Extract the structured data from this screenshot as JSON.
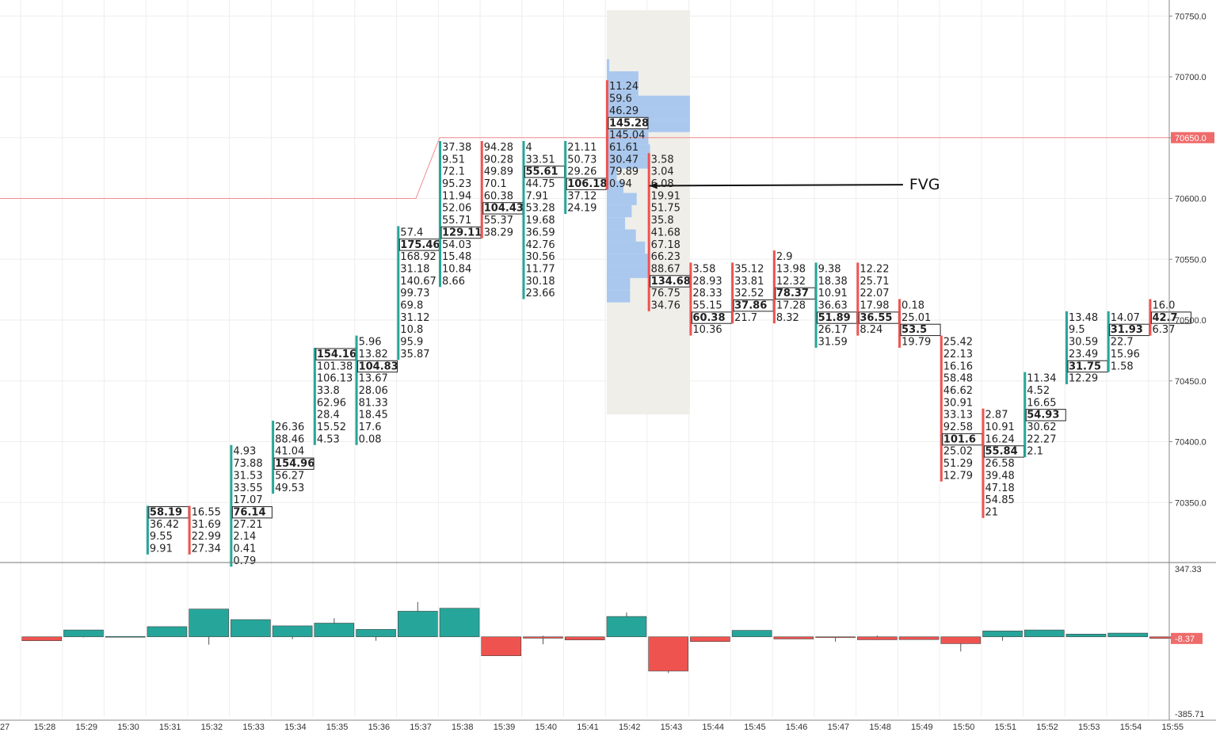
{
  "chart_data": {
    "type": "footprint",
    "price_axis": {
      "ylim": [
        70300,
        70770
      ],
      "ticks": [
        "70750.0",
        "70700.0",
        "70650.0",
        "70600.0",
        "70550.0",
        "70500.0",
        "70450.0",
        "70400.0",
        "70350.0"
      ],
      "current_price_label": "70650.0",
      "current_price": 70650,
      "prior_level": 70600,
      "level_color": "#f28b8b"
    },
    "time_axis": {
      "labels": [
        "27",
        "15:28",
        "15:29",
        "15:30",
        "15:31",
        "15:32",
        "15:33",
        "15:34",
        "15:35",
        "15:36",
        "15:37",
        "15:38",
        "15:39",
        "15:40",
        "15:41",
        "15:42",
        "15:43",
        "15:44",
        "15:45",
        "15:46",
        "15:47",
        "15:48",
        "15:49",
        "15:50",
        "15:51",
        "15:52",
        "15:53",
        "15:54",
        "15:55"
      ]
    },
    "footprint_columns": [
      {
        "time": "15:31",
        "direction": "up",
        "top_price": 70344,
        "values": [
          "58.19",
          "36.42",
          "9.55",
          "9.91"
        ],
        "poc": 0
      },
      {
        "time": "15:32",
        "direction": "down",
        "top_price": 70344,
        "values": [
          "16.55",
          "31.69",
          "22.99",
          "27.34"
        ],
        "poc": -1
      },
      {
        "time": "15:33",
        "direction": "up",
        "top_price": 70394,
        "values": [
          "4.93",
          "73.88",
          "31.53",
          "33.55",
          "17.07",
          "76.14",
          "27.21",
          "2.14",
          "0.41",
          "0.79"
        ],
        "poc": 5
      },
      {
        "time": "15:34",
        "direction": "up",
        "top_price": 70414,
        "values": [
          "26.36",
          "88.46",
          "41.04",
          "154.96",
          "56.27",
          "49.53"
        ],
        "poc": 3
      },
      {
        "time": "15:35",
        "direction": "up",
        "top_price": 70474,
        "values": [
          "154.16",
          "101.38",
          "106.13",
          "33.8",
          "62.96",
          "28.4",
          "15.52",
          "4.53"
        ],
        "poc": 0
      },
      {
        "time": "15:36",
        "direction": "up",
        "top_price": 70484,
        "values": [
          "5.96",
          "13.82",
          "104.83",
          "13.67",
          "28.06",
          "81.33",
          "18.45",
          "17.6",
          "0.08"
        ],
        "poc": 2
      },
      {
        "time": "15:37",
        "direction": "up",
        "top_price": 70574,
        "values": [
          "57.4",
          "175.46",
          "168.92",
          "31.18",
          "140.67",
          "99.73",
          "69.8",
          "31.12",
          "10.8",
          "95.9",
          "35.87"
        ],
        "poc": 1
      },
      {
        "time": "15:38",
        "direction": "up",
        "top_price": 70644,
        "values": [
          "37.38",
          "9.51",
          "72.1",
          "95.23",
          "11.94",
          "52.06",
          "55.71",
          "129.11",
          "54.03",
          "15.48",
          "10.84",
          "8.66"
        ],
        "poc": 7
      },
      {
        "time": "15:39",
        "direction": "down",
        "top_price": 70644,
        "values": [
          "94.28",
          "90.28",
          "49.89",
          "70.1",
          "60.38",
          "104.43",
          "55.37",
          "38.29"
        ],
        "poc": 5
      },
      {
        "time": "15:40",
        "direction": "up",
        "top_price": 70644,
        "values": [
          "4",
          "33.51",
          "55.61",
          "44.75",
          "7.91",
          "53.28",
          "19.68",
          "36.59",
          "42.76",
          "30.56",
          "11.77",
          "30.18",
          "23.66"
        ],
        "poc": 2
      },
      {
        "time": "15:41",
        "direction": "up",
        "top_price": 70644,
        "values": [
          "21.11",
          "50.73",
          "29.26",
          "106.18",
          "37.12",
          "24.19"
        ],
        "poc": 3
      },
      {
        "time": "15:42",
        "direction": "down",
        "top_price": 70694,
        "values": [
          "11.24",
          "59.6",
          "46.29",
          "145.28",
          "145.04",
          "61.61",
          "30.47",
          "79.89",
          "0.94"
        ],
        "poc": 3
      },
      {
        "time": "15:43",
        "direction": "down",
        "top_price": 70634,
        "values": [
          "3.58",
          "3.04",
          "6.08",
          "19.91",
          "51.75",
          "35.8",
          "41.68",
          "67.18",
          "66.23",
          "88.67",
          "134.68",
          "76.75",
          "34.76"
        ],
        "poc": 10
      },
      {
        "time": "15:44",
        "direction": "down",
        "top_price": 70544,
        "values": [
          "3.58",
          "28.93",
          "28.33",
          "55.15",
          "60.38",
          "10.36"
        ],
        "poc": 4
      },
      {
        "time": "15:45",
        "direction": "down",
        "top_price": 70544,
        "values": [
          "35.12",
          "33.81",
          "32.52",
          "37.86",
          "21.7"
        ],
        "poc": 3
      },
      {
        "time": "15:46",
        "direction": "down",
        "top_price": 70554,
        "values": [
          "2.9",
          "13.98",
          "12.32",
          "78.37",
          "17.28",
          "8.32"
        ],
        "poc": 3
      },
      {
        "time": "15:47",
        "direction": "up",
        "top_price": 70544,
        "values": [
          "9.38",
          "18.38",
          "10.91",
          "36.63",
          "51.89",
          "26.17",
          "31.59"
        ],
        "poc": 4
      },
      {
        "time": "15:48",
        "direction": "down",
        "top_price": 70544,
        "values": [
          "12.22",
          "25.71",
          "22.07",
          "17.98",
          "36.55",
          "8.24"
        ],
        "poc": 4
      },
      {
        "time": "15:49",
        "direction": "down",
        "top_price": 70514,
        "values": [
          "0.18",
          "25.01",
          "53.5",
          "19.79"
        ],
        "poc": 2
      },
      {
        "time": "15:50",
        "direction": "down",
        "top_price": 70484,
        "values": [
          "25.42",
          "22.13",
          "16.16",
          "58.48",
          "46.62",
          "30.91",
          "33.13",
          "92.58",
          "101.6",
          "25.02",
          "51.29",
          "12.79"
        ],
        "poc": 8
      },
      {
        "time": "15:51",
        "direction": "down",
        "top_price": 70424,
        "values": [
          "2.87",
          "10.91",
          "16.24",
          "55.84",
          "26.58",
          "39.48",
          "47.18",
          "54.85",
          "21"
        ],
        "poc": 3
      },
      {
        "time": "15:52",
        "direction": "up",
        "top_price": 70454,
        "values": [
          "11.34",
          "4.52",
          "16.65",
          "54.93",
          "30.62",
          "22.27",
          "2.1"
        ],
        "poc": 3
      },
      {
        "time": "15:53",
        "direction": "up",
        "top_price": 70504,
        "values": [
          "13.48",
          "9.5",
          "30.59",
          "23.49",
          "31.75",
          "12.29"
        ],
        "poc": 4
      },
      {
        "time": "15:54",
        "direction": "up",
        "top_price": 70504,
        "values": [
          "14.07",
          "31.93",
          "22.7",
          "15.96",
          "1.58"
        ],
        "poc": 1
      },
      {
        "time": "15:55",
        "direction": "down",
        "top_price": 70514,
        "values": [
          "16.0",
          "42.7",
          "6.37"
        ],
        "poc": 1
      }
    ],
    "delta_pane": {
      "ylim": [
        -385.71,
        347.33
      ],
      "tick_top": "347.33",
      "tick_bottom": "-385.71",
      "current_label": "-8.37",
      "bars": [
        {
          "time": "15:27",
          "value": 1,
          "wick_high": 1,
          "wick_low": -1
        },
        {
          "time": "15:28",
          "value": -20,
          "wick_high": 0,
          "wick_low": -20
        },
        {
          "time": "15:29",
          "value": 35,
          "wick_high": 35,
          "wick_low": -3
        },
        {
          "time": "15:30",
          "value": 2,
          "wick_high": 3,
          "wick_low": -2
        },
        {
          "time": "15:31",
          "value": 52,
          "wick_high": 52,
          "wick_low": 0
        },
        {
          "time": "15:32",
          "value": 142,
          "wick_high": 142,
          "wick_low": -40
        },
        {
          "time": "15:33",
          "value": 88,
          "wick_high": 88,
          "wick_low": 0
        },
        {
          "time": "15:34",
          "value": 56,
          "wick_high": 56,
          "wick_low": -12
        },
        {
          "time": "15:35",
          "value": 70,
          "wick_high": 95,
          "wick_low": 0
        },
        {
          "time": "15:36",
          "value": 38,
          "wick_high": 38,
          "wick_low": -20
        },
        {
          "time": "15:37",
          "value": 131,
          "wick_high": 178,
          "wick_low": 0
        },
        {
          "time": "15:38",
          "value": 146,
          "wick_high": 146,
          "wick_low": 0
        },
        {
          "time": "15:39",
          "value": -97,
          "wick_high": 0,
          "wick_low": -97
        },
        {
          "time": "15:40",
          "value": -7,
          "wick_high": 5,
          "wick_low": -38
        },
        {
          "time": "15:41",
          "value": -16,
          "wick_high": 0,
          "wick_low": -16
        },
        {
          "time": "15:42",
          "value": 104,
          "wick_high": 124,
          "wick_low": 0
        },
        {
          "time": "15:43",
          "value": -175,
          "wick_high": 0,
          "wick_low": -185
        },
        {
          "time": "15:44",
          "value": -24,
          "wick_high": 0,
          "wick_low": -24
        },
        {
          "time": "15:45",
          "value": 33,
          "wick_high": 33,
          "wick_low": 0
        },
        {
          "time": "15:46",
          "value": -11,
          "wick_high": 0,
          "wick_low": -11
        },
        {
          "time": "15:47",
          "value": -3,
          "wick_high": 0,
          "wick_low": -25
        },
        {
          "time": "15:48",
          "value": -15,
          "wick_high": 6,
          "wick_low": -15
        },
        {
          "time": "15:49",
          "value": -14,
          "wick_high": 0,
          "wick_low": -14
        },
        {
          "time": "15:50",
          "value": -35,
          "wick_high": 0,
          "wick_low": -75
        },
        {
          "time": "15:51",
          "value": 30,
          "wick_high": 30,
          "wick_low": -20
        },
        {
          "time": "15:52",
          "value": 35,
          "wick_high": 35,
          "wick_low": 0
        },
        {
          "time": "15:53",
          "value": 14,
          "wick_high": 14,
          "wick_low": 0
        },
        {
          "time": "15:54",
          "value": 19,
          "wick_high": 19,
          "wick_low": 0
        },
        {
          "time": "15:55",
          "value": -8.37,
          "wick_high": 0,
          "wick_low": -8.37
        }
      ]
    },
    "volume_profile": {
      "time": "15:42",
      "widths": [
        {
          "price": 70710,
          "w": 3
        },
        {
          "price": 70700,
          "w": 38
        },
        {
          "price": 70690,
          "w": 38
        },
        {
          "price": 70680,
          "w": 100
        },
        {
          "price": 70670,
          "w": 100
        },
        {
          "price": 70660,
          "w": 100
        },
        {
          "price": 70650,
          "w": 50
        },
        {
          "price": 70640,
          "w": 52
        },
        {
          "price": 70630,
          "w": 52
        },
        {
          "price": 70620,
          "w": 12
        },
        {
          "price": 70610,
          "w": 20
        },
        {
          "price": 70600,
          "w": 36
        },
        {
          "price": 70590,
          "w": 30
        },
        {
          "price": 70580,
          "w": 22
        },
        {
          "price": 70570,
          "w": 35
        },
        {
          "price": 70560,
          "w": 46
        },
        {
          "price": 70550,
          "w": 52
        },
        {
          "price": 70540,
          "w": 52
        },
        {
          "price": 70530,
          "w": 28
        },
        {
          "price": 70520,
          "w": 28
        }
      ]
    },
    "annotations": [
      {
        "text": "FVG",
        "price": 70612,
        "time_index": 21.2,
        "arrow_to_time_index": 15.45,
        "arrow_to_price": 70615
      }
    ],
    "colors": {
      "up": "#26a69a",
      "down": "#ef5350",
      "profile": "#aac8ee",
      "highlight": "#efeee9",
      "poc_bg": "#ffffff",
      "grid": "#eeeeee"
    }
  }
}
